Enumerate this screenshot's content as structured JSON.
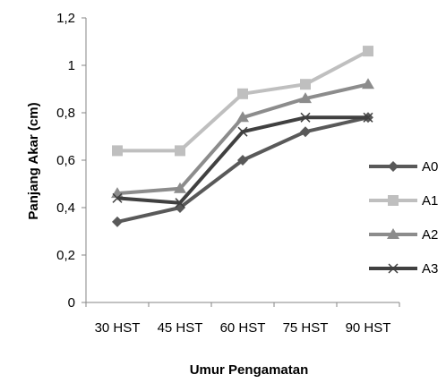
{
  "chart_data": {
    "type": "line",
    "title": "",
    "xlabel": "Umur Pengamatan",
    "ylabel": "Panjang Akar (cm)",
    "categories": [
      "30 HST",
      "45 HST",
      "60 HST",
      "75 HST",
      "90 HST"
    ],
    "ylim": [
      0,
      1.2
    ],
    "yticks": [
      "0",
      "0,2",
      "0,4",
      "0,6",
      "0,8",
      "1",
      "1,2"
    ],
    "grid": false,
    "legend": "right",
    "series": [
      {
        "name": "A0",
        "values": [
          0.34,
          0.4,
          0.6,
          0.72,
          0.78
        ],
        "color": "#595959",
        "marker": "diamond"
      },
      {
        "name": "A1",
        "values": [
          0.64,
          0.64,
          0.88,
          0.92,
          1.06
        ],
        "color": "#bfbfbf",
        "marker": "square"
      },
      {
        "name": "A2",
        "values": [
          0.46,
          0.48,
          0.78,
          0.86,
          0.92
        ],
        "color": "#8c8c8c",
        "marker": "triangle"
      },
      {
        "name": "A3",
        "values": [
          0.44,
          0.42,
          0.72,
          0.78,
          0.78
        ],
        "color": "#404040",
        "marker": "x"
      }
    ]
  }
}
